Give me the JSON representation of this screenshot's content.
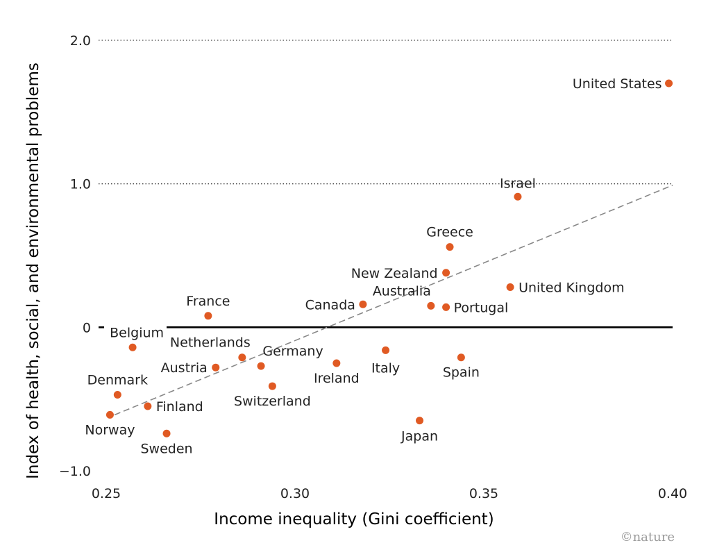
{
  "chart_data": {
    "type": "scatter",
    "xlabel": "Income inequality (Gini coefficient)",
    "ylabel": "Index of health, social, and environmental problems",
    "xlim": [
      0.25,
      0.4
    ],
    "ylim": [
      -1.0,
      2.0
    ],
    "x_ticks": [
      "0.25",
      "0.30",
      "0.35",
      "0.40"
    ],
    "y_ticks": [
      "2.0",
      "1.0",
      "0",
      "−1.0"
    ],
    "points": [
      {
        "name": "United States",
        "x": 0.399,
        "y": 1.7
      },
      {
        "name": "Israel",
        "x": 0.359,
        "y": 0.91
      },
      {
        "name": "Greece",
        "x": 0.341,
        "y": 0.56
      },
      {
        "name": "New Zealand",
        "x": 0.34,
        "y": 0.38
      },
      {
        "name": "United Kingdom",
        "x": 0.357,
        "y": 0.28
      },
      {
        "name": "Australia",
        "x": 0.336,
        "y": 0.15
      },
      {
        "name": "Portugal",
        "x": 0.34,
        "y": 0.14
      },
      {
        "name": "Canada",
        "x": 0.318,
        "y": 0.16
      },
      {
        "name": "France",
        "x": 0.277,
        "y": 0.08
      },
      {
        "name": "Belgium",
        "x": 0.257,
        "y": -0.14
      },
      {
        "name": "Netherlands",
        "x": 0.286,
        "y": -0.21
      },
      {
        "name": "Germany",
        "x": 0.291,
        "y": -0.27
      },
      {
        "name": "Austria",
        "x": 0.279,
        "y": -0.28
      },
      {
        "name": "Ireland",
        "x": 0.311,
        "y": -0.25
      },
      {
        "name": "Italy",
        "x": 0.324,
        "y": -0.16
      },
      {
        "name": "Spain",
        "x": 0.344,
        "y": -0.21
      },
      {
        "name": "Switzerland",
        "x": 0.294,
        "y": -0.41
      },
      {
        "name": "Denmark",
        "x": 0.253,
        "y": -0.47
      },
      {
        "name": "Finland",
        "x": 0.261,
        "y": -0.55
      },
      {
        "name": "Norway",
        "x": 0.251,
        "y": -0.61
      },
      {
        "name": "Sweden",
        "x": 0.266,
        "y": -0.74
      },
      {
        "name": "Japan",
        "x": 0.333,
        "y": -0.65
      }
    ],
    "trendline": {
      "x": [
        0.25,
        0.4
      ],
      "y": [
        -0.62,
        0.99
      ]
    },
    "grid": "horizontal dotted",
    "point_color": "#e05a23",
    "trendline_color": "#888888",
    "zero_line_color": "#000000"
  },
  "credit": "©nature"
}
